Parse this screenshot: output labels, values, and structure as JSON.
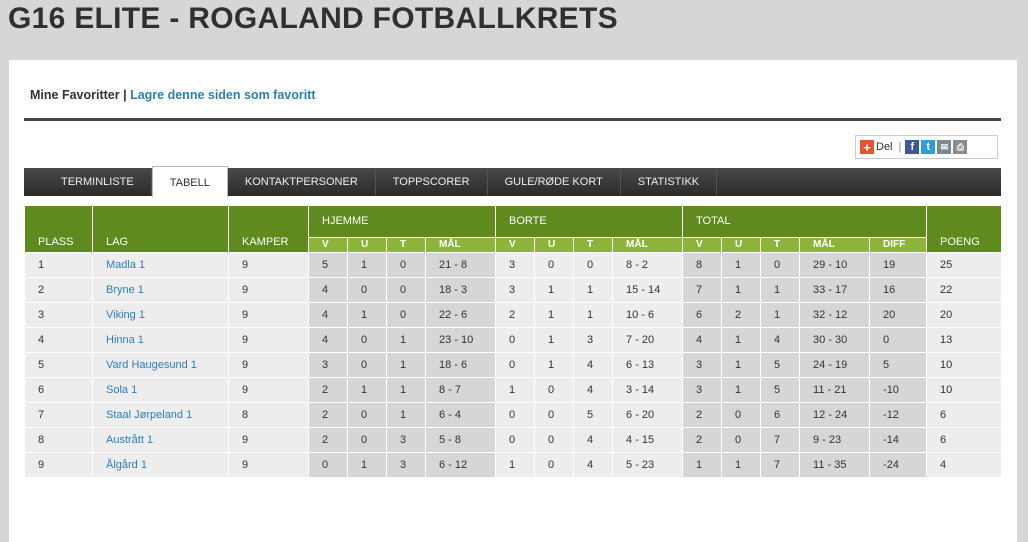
{
  "title": "G16 ELITE - ROGALAND FOTBALLKRETS",
  "favorites": {
    "label": "Mine Favoritter",
    "sep": "|",
    "link": "Lagre denne siden som favoritt"
  },
  "share": {
    "label": "Del",
    "sep": "|"
  },
  "tabs": [
    "TERMINLISTE",
    "TABELL",
    "KONTAKTPERSONER",
    "TOPPSCORER",
    "GULE/RØDE KORT",
    "STATISTIKK"
  ],
  "table": {
    "headers": {
      "plass": "PLASS",
      "lag": "LAG",
      "kamper": "KAMPER",
      "hjemme": "HJEMME",
      "borte": "BORTE",
      "total": "TOTAL",
      "poeng": "POENG",
      "v": "V",
      "u": "U",
      "t": "T",
      "mal": "MÅL",
      "diff": "DIFF"
    },
    "rows": [
      [
        "1",
        "Madla 1",
        "9",
        "5",
        "1",
        "0",
        "21 - 8",
        "3",
        "0",
        "0",
        "8 - 2",
        "8",
        "1",
        "0",
        "29 - 10",
        "19",
        "25"
      ],
      [
        "2",
        "Bryne 1",
        "9",
        "4",
        "0",
        "0",
        "18 - 3",
        "3",
        "1",
        "1",
        "15 - 14",
        "7",
        "1",
        "1",
        "33 - 17",
        "16",
        "22"
      ],
      [
        "3",
        "Viking 1",
        "9",
        "4",
        "1",
        "0",
        "22 - 6",
        "2",
        "1",
        "1",
        "10 - 6",
        "6",
        "2",
        "1",
        "32 - 12",
        "20",
        "20"
      ],
      [
        "4",
        "Hinna 1",
        "9",
        "4",
        "0",
        "1",
        "23 - 10",
        "0",
        "1",
        "3",
        "7 - 20",
        "4",
        "1",
        "4",
        "30 - 30",
        "0",
        "13"
      ],
      [
        "5",
        "Vard Haugesund 1",
        "9",
        "3",
        "0",
        "1",
        "18 - 6",
        "0",
        "1",
        "4",
        "6 - 13",
        "3",
        "1",
        "5",
        "24 - 19",
        "5",
        "10"
      ],
      [
        "6",
        "Sola 1",
        "9",
        "2",
        "1",
        "1",
        "8 - 7",
        "1",
        "0",
        "4",
        "3 - 14",
        "3",
        "1",
        "5",
        "11 - 21",
        "-10",
        "10"
      ],
      [
        "7",
        "Staal Jørpeland 1",
        "8",
        "2",
        "0",
        "1",
        "6 - 4",
        "0",
        "0",
        "5",
        "6 - 20",
        "2",
        "0",
        "6",
        "12 - 24",
        "-12",
        "6"
      ],
      [
        "8",
        "Austrått 1",
        "9",
        "2",
        "0",
        "3",
        "5 - 8",
        "0",
        "0",
        "4",
        "4 - 15",
        "2",
        "0",
        "7",
        "9 - 23",
        "-14",
        "6"
      ],
      [
        "9",
        "Ålgård 1",
        "9",
        "0",
        "1",
        "3",
        "6 - 12",
        "1",
        "0",
        "4",
        "5 - 23",
        "1",
        "1",
        "7",
        "11 - 35",
        "-24",
        "4"
      ]
    ]
  }
}
